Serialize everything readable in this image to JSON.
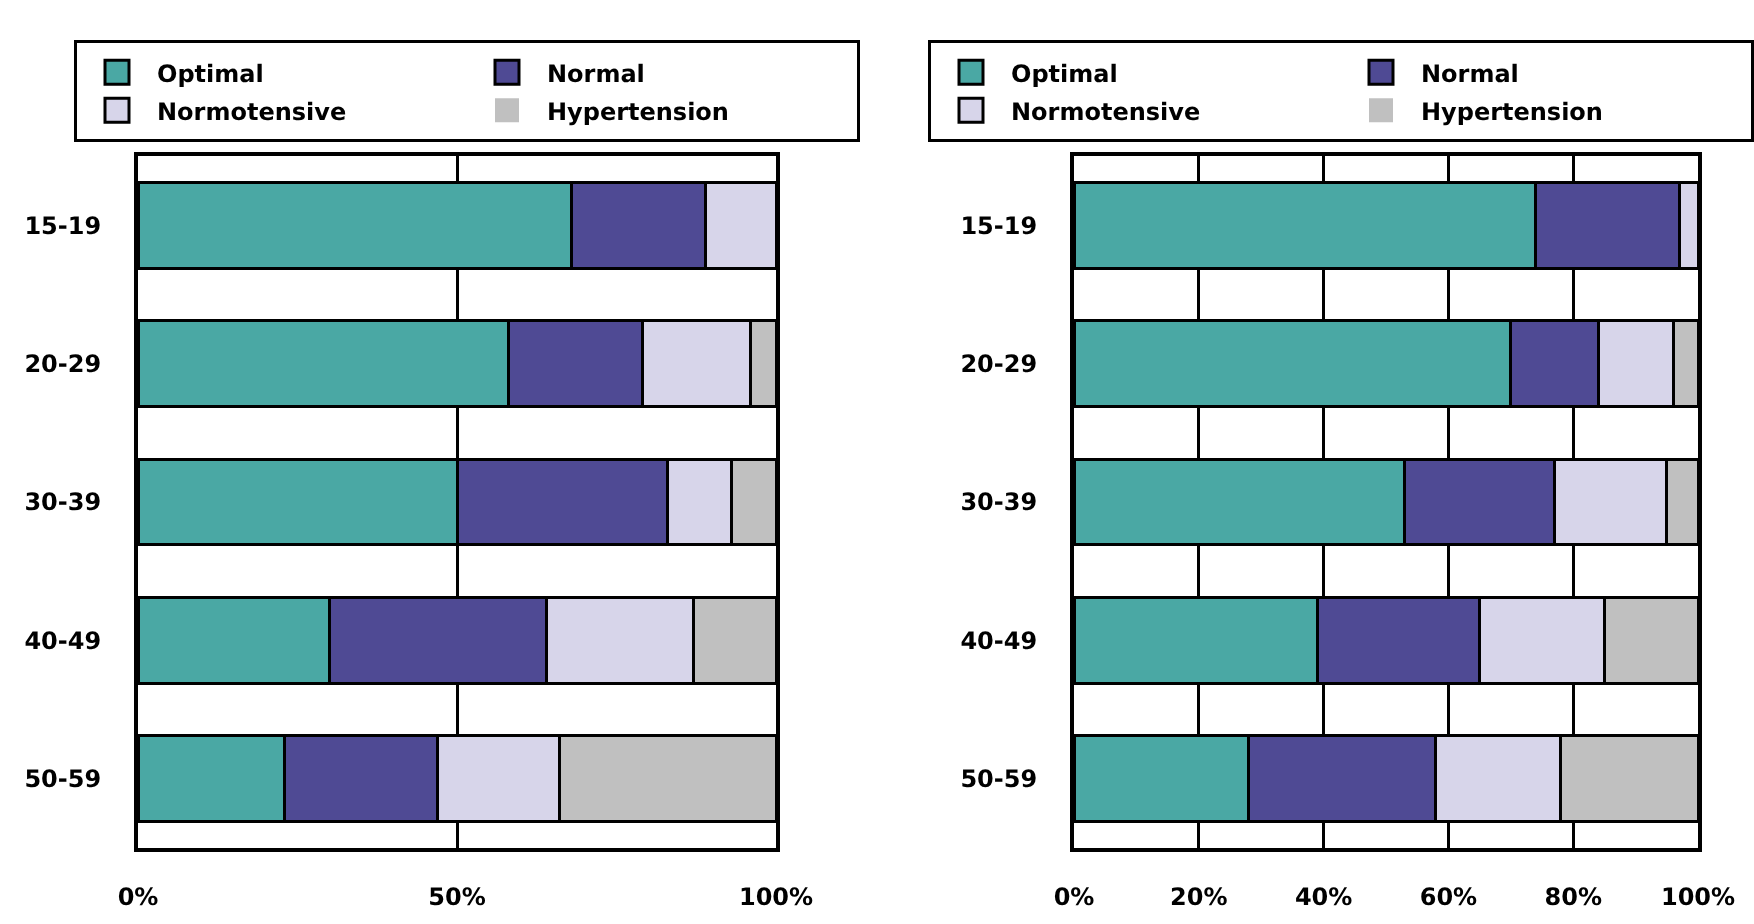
{
  "chart_data": [
    {
      "type": "bar",
      "orientation": "horizontal",
      "stacked": true,
      "categories": [
        "15-19",
        "20-29",
        "30-39",
        "40-49",
        "50-59"
      ],
      "series": [
        {
          "name": "Optimal",
          "color": "#4aa8a4",
          "values": [
            68,
            58,
            50,
            30,
            23
          ]
        },
        {
          "name": "Normal",
          "color": "#4f4a94",
          "values": [
            21,
            21,
            33,
            34,
            24
          ]
        },
        {
          "name": "Normotensive",
          "color": "#d7d5ea",
          "values": [
            11,
            17,
            10,
            23,
            19
          ]
        },
        {
          "name": "Hypertension",
          "color": "#c0c0c0",
          "values": [
            0,
            4,
            7,
            13,
            34
          ]
        }
      ],
      "xlim": [
        0,
        100
      ],
      "xticks": [
        {
          "value": 0,
          "label": "0%"
        },
        {
          "value": 50,
          "label": "50%"
        },
        {
          "value": 100,
          "label": "100%"
        }
      ],
      "grid": "x",
      "legend": "top"
    },
    {
      "type": "bar",
      "orientation": "horizontal",
      "stacked": true,
      "categories": [
        "15-19",
        "20-29",
        "30-39",
        "40-49",
        "50-59"
      ],
      "series": [
        {
          "name": "Optimal",
          "color": "#4aa8a4",
          "values": [
            74,
            70,
            53,
            39,
            28
          ]
        },
        {
          "name": "Normal",
          "color": "#4f4a94",
          "values": [
            23,
            14,
            24,
            26,
            30
          ]
        },
        {
          "name": "Normotensive",
          "color": "#d7d5ea",
          "values": [
            3,
            12,
            18,
            20,
            20
          ]
        },
        {
          "name": "Hypertension",
          "color": "#c0c0c0",
          "values": [
            0,
            4,
            5,
            15,
            22
          ]
        }
      ],
      "xlim": [
        0,
        100
      ],
      "xticks": [
        {
          "value": 0,
          "label": "0%"
        },
        {
          "value": 20,
          "label": "20%"
        },
        {
          "value": 40,
          "label": "40%"
        },
        {
          "value": 60,
          "label": "60%"
        },
        {
          "value": 80,
          "label": "80%"
        },
        {
          "value": 100,
          "label": "100%"
        }
      ],
      "grid": "x",
      "legend": "top"
    }
  ]
}
